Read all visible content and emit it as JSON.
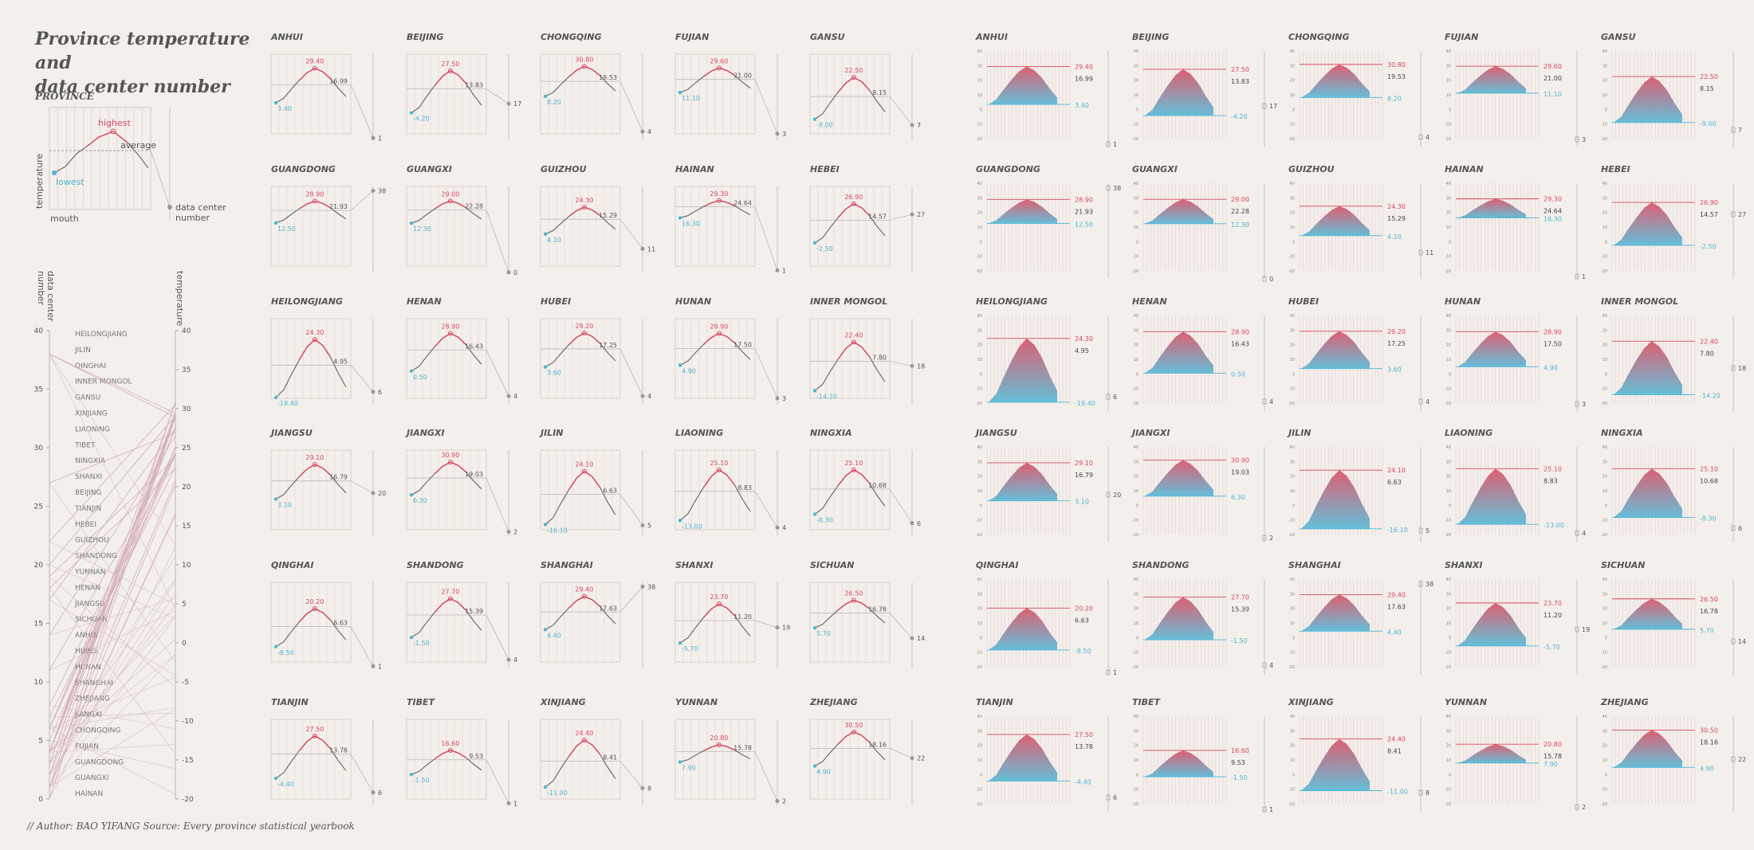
{
  "title": "Province temperature and\ndata center number",
  "legend": {
    "title": "PROVINCE",
    "highest": "highest",
    "average": "average",
    "lowest": "lowest",
    "ylabel": "temperature",
    "xlabel": "mouth",
    "dc_label": "data center\nnumber"
  },
  "credit": "// Author:   BAO YIFANG    Source:  Every province statistical yearbook",
  "colors": {
    "high": "#d9475d",
    "low": "#4db6d6",
    "line": "#6e6e6e",
    "grid": "#e6c8cc",
    "text": "#555555"
  },
  "chart_data": {
    "type": "line",
    "x": [
      "1",
      "2",
      "3",
      "4",
      "5",
      "6",
      "7",
      "8",
      "9",
      "10",
      "11",
      "12"
    ],
    "ylim": [
      -20,
      40
    ],
    "provinces": [
      {
        "name": "ANHUI",
        "low": 3.4,
        "high": 29.4,
        "avg": 16.99,
        "dc": 1
      },
      {
        "name": "BEIJING",
        "low": -4.2,
        "high": 27.5,
        "avg": 13.83,
        "dc": 17
      },
      {
        "name": "CHONGQING",
        "low": 8.2,
        "high": 30.8,
        "avg": 19.53,
        "dc": 4
      },
      {
        "name": "FUJIAN",
        "low": 11.1,
        "high": 29.6,
        "avg": 21.0,
        "dc": 3
      },
      {
        "name": "GANSU",
        "low": -9.0,
        "high": 22.5,
        "avg": 8.15,
        "dc": 7
      },
      {
        "name": "GUANGDONG",
        "low": 12.5,
        "high": 28.9,
        "avg": 21.93,
        "dc": 38
      },
      {
        "name": "GUANGXI",
        "low": 12.3,
        "high": 29.0,
        "avg": 22.28,
        "dc": 0
      },
      {
        "name": "GUIZHOU",
        "low": 4.1,
        "high": 24.3,
        "avg": 15.29,
        "dc": 11
      },
      {
        "name": "HAINAN",
        "low": 16.3,
        "high": 29.3,
        "avg": 24.64,
        "dc": 1
      },
      {
        "name": "HEBEI",
        "low": -2.5,
        "high": 26.9,
        "avg": 14.57,
        "dc": 27
      },
      {
        "name": "HEILONGJIANG",
        "low": -19.4,
        "high": 24.3,
        "avg": 4.95,
        "dc": 6
      },
      {
        "name": "HENAN",
        "low": 0.5,
        "high": 28.9,
        "avg": 16.43,
        "dc": 4
      },
      {
        "name": "HUBEI",
        "low": 3.6,
        "high": 29.2,
        "avg": 17.25,
        "dc": 4
      },
      {
        "name": "HUNAN",
        "low": 4.9,
        "high": 28.9,
        "avg": 17.5,
        "dc": 3
      },
      {
        "name": "INNER MONGOL",
        "low": -14.2,
        "high": 22.4,
        "avg": 7.8,
        "dc": 18
      },
      {
        "name": "JIANGSU",
        "low": 3.1,
        "high": 29.1,
        "avg": 16.79,
        "dc": 20
      },
      {
        "name": "JIANGXI",
        "low": 6.3,
        "high": 30.9,
        "avg": 19.03,
        "dc": 2
      },
      {
        "name": "JILIN",
        "low": -16.1,
        "high": 24.1,
        "avg": 6.63,
        "dc": 5
      },
      {
        "name": "LIAONING",
        "low": -13.0,
        "high": 25.1,
        "avg": 8.83,
        "dc": 4
      },
      {
        "name": "NINGXIA",
        "low": -8.3,
        "high": 25.1,
        "avg": 10.68,
        "dc": 6
      },
      {
        "name": "QINGHAI",
        "low": -8.5,
        "high": 20.2,
        "avg": 6.63,
        "dc": 1
      },
      {
        "name": "SHANDONG",
        "low": -1.5,
        "high": 27.7,
        "avg": 15.39,
        "dc": 4
      },
      {
        "name": "SHANGHAI",
        "low": 4.4,
        "high": 29.4,
        "avg": 17.63,
        "dc": 38
      },
      {
        "name": "SHANXI",
        "low": -5.7,
        "high": 23.7,
        "avg": 11.2,
        "dc": 19
      },
      {
        "name": "SICHUAN",
        "low": 5.7,
        "high": 26.5,
        "avg": 16.78,
        "dc": 14
      },
      {
        "name": "TIANJIN",
        "low": -4.4,
        "high": 27.5,
        "avg": 13.78,
        "dc": 6
      },
      {
        "name": "TIBET",
        "low": -1.5,
        "high": 16.6,
        "avg": 9.53,
        "dc": 1
      },
      {
        "name": "XINJIANG",
        "low": -11.0,
        "high": 24.4,
        "avg": 8.41,
        "dc": 8
      },
      {
        "name": "YUNNAN",
        "low": 7.9,
        "high": 20.8,
        "avg": 15.78,
        "dc": 2
      },
      {
        "name": "ZHEJIANG",
        "low": 4.9,
        "high": 30.5,
        "avg": 18.16,
        "dc": 22
      }
    ],
    "slope": {
      "left_axis_label": "data center\nnumber",
      "right_axis_label": "temperature",
      "left_ticks": [
        "40",
        "35",
        "30",
        "25",
        "20",
        "15",
        "10",
        "5",
        "0"
      ],
      "right_ticks": [
        "40",
        "35",
        "30",
        "25",
        "20",
        "15",
        "10",
        "5",
        "0",
        "-5",
        "-10",
        "-15",
        "-20"
      ],
      "order": [
        "HEILONGJIANG",
        "JILIN",
        "QINGHAI",
        "INNER MONGOL",
        "GANSU",
        "XINJIANG",
        "LIAONING",
        "TIBET",
        "NINGXIA",
        "SHANXI",
        "BEIJING",
        "TIANJIN",
        "HEBEI",
        "GUIZHOU",
        "SHANDONG",
        "YUNNAN",
        "HENAN",
        "JIANGSU",
        "SICHUAN",
        "ANHUI",
        "HUBEI",
        "HUNAN",
        "SHANGHAI",
        "ZHEJIANG",
        "JIANGXI",
        "CHONGQING",
        "FUJIAN",
        "GUANGDONG",
        "GUANGXI",
        "HAINAN"
      ]
    }
  }
}
